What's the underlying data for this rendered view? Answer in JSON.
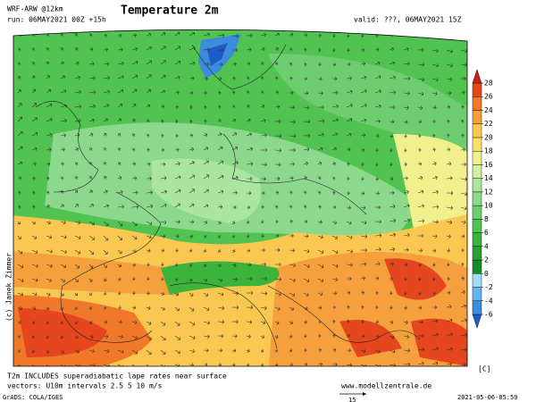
{
  "header": {
    "model": "WRF-ARW @12km",
    "run": "run: 06MAY2021 00Z +15h",
    "title": "Temperature 2m",
    "valid": "valid: ???, 06MAY2021 15Z"
  },
  "credit": "(c) Janek Zimmer",
  "footer": {
    "note": "T2m INCLUDES superadiabatic lape rates near surface",
    "vectors": "vectors: U10m intervals 2.5 5 10 m/s",
    "site": "www.modellzentrale.de",
    "grads": "GrADS: COLA/IGES",
    "timestamp": "2021-05-06-05:59",
    "vector_scale": "15"
  },
  "colorbar": {
    "unit": "[C]",
    "levels": [
      -6,
      -4,
      -2,
      0,
      2,
      4,
      6,
      8,
      10,
      12,
      14,
      16,
      18,
      20,
      22,
      24,
      26,
      28
    ],
    "colors": [
      "#1e5ac8",
      "#3c8cdc",
      "#64b4f0",
      "#a0dcfa",
      "#148c28",
      "#28a032",
      "#3cb43c",
      "#50c350",
      "#6ecd6e",
      "#8cd88c",
      "#aae6a0",
      "#d2f0a0",
      "#f0f08c",
      "#fae164",
      "#fac850",
      "#f5a03c",
      "#f07828",
      "#e6461e",
      "#c81e1e"
    ]
  }
}
